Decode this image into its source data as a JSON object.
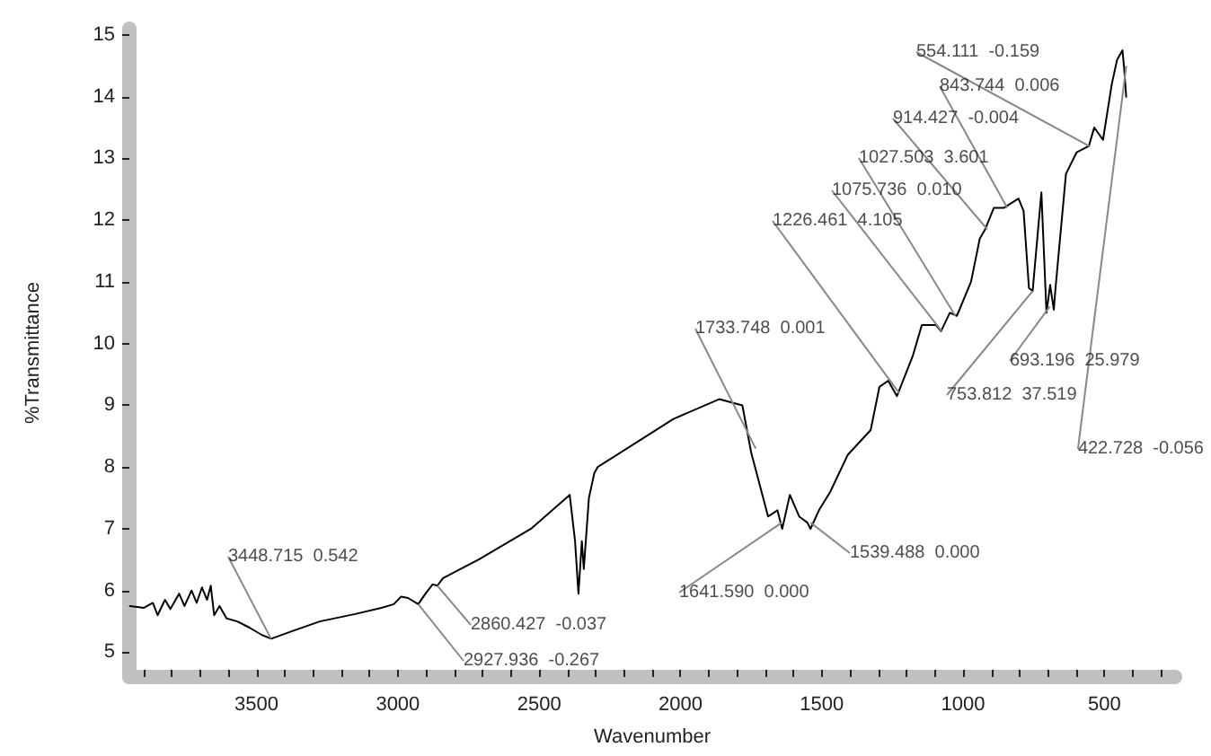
{
  "chart_data": {
    "type": "line",
    "xlabel": "Wavenumber",
    "ylabel": "%Transmittance",
    "x": [
      3948,
      3898,
      3867,
      3850,
      3824,
      3805,
      3774,
      3755,
      3730,
      3712,
      3693,
      3675,
      3662,
      3650,
      3631,
      3606,
      3568,
      3525,
      3481,
      3448,
      3369,
      3276,
      3151,
      3058,
      3014,
      2989,
      2964,
      2928,
      2902,
      2877,
      2860,
      2840,
      2715,
      2529,
      2392,
      2373,
      2361,
      2349,
      2342,
      2324,
      2305,
      2293,
      2025,
      1863,
      1781,
      1750,
      1719,
      1690,
      1657,
      1640,
      1613,
      1580,
      1551,
      1540,
      1510,
      1470,
      1408,
      1327,
      1296,
      1265,
      1234,
      1178,
      1146,
      1096,
      1078,
      1047,
      1022,
      972,
      941,
      922,
      891,
      855,
      804,
      786,
      767,
      754,
      723,
      705,
      692,
      679,
      673,
      636,
      598,
      555,
      536,
      505,
      474,
      455,
      436,
      430,
      423
    ],
    "series": [
      {
        "color": "#000000",
        "values": [
          5.75,
          5.72,
          5.8,
          5.6,
          5.85,
          5.7,
          5.95,
          5.75,
          6.0,
          5.8,
          6.05,
          5.85,
          6.08,
          5.6,
          5.75,
          5.55,
          5.5,
          5.4,
          5.28,
          5.22,
          5.35,
          5.5,
          5.62,
          5.72,
          5.78,
          5.9,
          5.88,
          5.78,
          5.95,
          6.1,
          6.08,
          6.2,
          6.5,
          7.0,
          7.55,
          6.8,
          5.95,
          6.8,
          6.35,
          7.5,
          7.9,
          8.0,
          8.78,
          9.1,
          9.0,
          8.24,
          7.7,
          7.2,
          7.3,
          7.0,
          7.55,
          7.2,
          7.1,
          7.0,
          7.3,
          7.6,
          8.2,
          8.6,
          9.3,
          9.4,
          9.15,
          9.8,
          10.3,
          10.3,
          10.2,
          10.5,
          10.45,
          11.0,
          11.7,
          11.85,
          12.2,
          12.2,
          12.35,
          12.15,
          10.9,
          10.85,
          12.45,
          10.5,
          10.95,
          10.55,
          10.9,
          12.75,
          13.1,
          13.2,
          13.5,
          13.3,
          14.2,
          14.6,
          14.75,
          14.45,
          14.0
        ]
      }
    ],
    "xlim": [
      3950,
      250
    ],
    "ylim": [
      4.6,
      15.1
    ],
    "xticks": [
      {
        "value": 3900,
        "label": null
      },
      {
        "value": 3800,
        "label": null
      },
      {
        "value": 3700,
        "label": null
      },
      {
        "value": 3600,
        "label": null
      },
      3500,
      {
        "value": 3400,
        "label": null
      },
      {
        "value": 3300,
        "label": null
      },
      {
        "value": 3200,
        "label": null
      },
      {
        "value": 3100,
        "label": null
      },
      3000,
      {
        "value": 2900,
        "label": null
      },
      {
        "value": 2800,
        "label": null
      },
      {
        "value": 2700,
        "label": null
      },
      {
        "value": 2600,
        "label": null
      },
      2500,
      {
        "value": 2400,
        "label": null
      },
      {
        "value": 2300,
        "label": null
      },
      {
        "value": 2200,
        "label": null
      },
      {
        "value": 2100,
        "label": null
      },
      2000,
      {
        "value": 1900,
        "label": null
      },
      {
        "value": 1800,
        "label": null
      },
      {
        "value": 1700,
        "label": null
      },
      {
        "value": 1600,
        "label": null
      },
      1500,
      {
        "value": 1400,
        "label": null
      },
      {
        "value": 1300,
        "label": null
      },
      {
        "value": 1200,
        "label": null
      },
      {
        "value": 1100,
        "label": null
      },
      1000,
      {
        "value": 900,
        "label": null
      },
      {
        "value": 800,
        "label": null
      },
      {
        "value": 700,
        "label": null
      },
      {
        "value": 600,
        "label": null
      },
      500,
      {
        "value": 400,
        "label": null
      },
      {
        "value": 300,
        "label": null
      }
    ],
    "yticks": [
      5,
      6,
      7,
      8,
      9,
      10,
      11,
      12,
      13,
      14,
      15
    ],
    "grid": false,
    "annotations": [
      {
        "text": "3448.715  0.542",
        "x": 3448.715,
        "y": 5.22
      },
      {
        "text": "2927.936  -0.267",
        "x": 2927.936,
        "y": 5.78
      },
      {
        "text": "2860.427  -0.037",
        "x": 2860.427,
        "y": 6.08
      },
      {
        "text": "1733.748  0.001",
        "x": 1733.748,
        "y": 8.3
      },
      {
        "text": "1641.590  0.000",
        "x": 1641.59,
        "y": 7.1
      },
      {
        "text": "1539.488  0.000",
        "x": 1539.488,
        "y": 7.1
      },
      {
        "text": "1226.461  4.105",
        "x": 1226.461,
        "y": 9.2
      },
      {
        "text": "1075.736  0.010",
        "x": 1075.736,
        "y": 10.2
      },
      {
        "text": "1027.503  3.601",
        "x": 1027.503,
        "y": 10.45
      },
      {
        "text": "914.427  -0.004",
        "x": 914.427,
        "y": 11.85
      },
      {
        "text": "843.744  0.006",
        "x": 843.744,
        "y": 12.2
      },
      {
        "text": "554.111  -0.159",
        "x": 554.111,
        "y": 13.2
      },
      {
        "text": "422.728  -0.056",
        "x": 422.728,
        "y": 14.5
      },
      {
        "text": "753.812  37.519",
        "x": 753.812,
        "y": 10.85
      },
      {
        "text": "693.196  25.979",
        "x": 693.196,
        "y": 10.6
      }
    ]
  }
}
